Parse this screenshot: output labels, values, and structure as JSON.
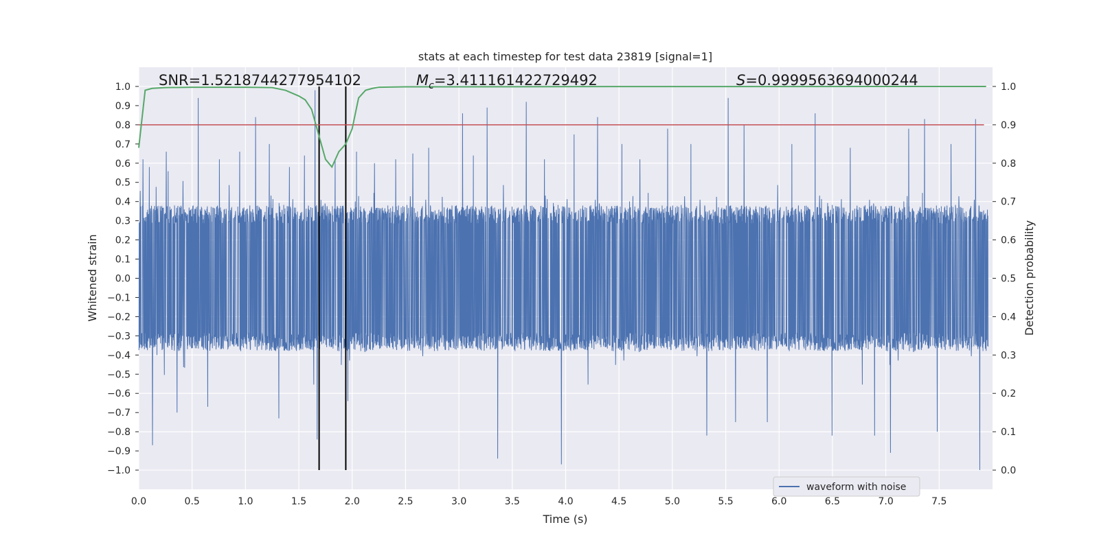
{
  "chart_data": {
    "type": "line",
    "title": "stats at each timestep for test data 23819 [signal=1]",
    "xlabel": "Time (s)",
    "ylabel_left": "Whitened strain",
    "ylabel_right": "Detection probability",
    "xlim": [
      0.0,
      8.0
    ],
    "ylim_left": [
      -1.1,
      1.1
    ],
    "ylim_right": [
      -0.05,
      1.05
    ],
    "x_ticks": [
      "0.0",
      "0.5",
      "1.0",
      "1.5",
      "2.0",
      "2.5",
      "3.0",
      "3.5",
      "4.0",
      "4.5",
      "5.0",
      "5.5",
      "6.0",
      "6.5",
      "7.0",
      "7.5"
    ],
    "y_ticks_left": [
      "1.0",
      "0.9",
      "0.8",
      "0.7",
      "0.6",
      "0.5",
      "0.4",
      "0.3",
      "0.2",
      "0.1",
      "0.0",
      "−0.1",
      "−0.2",
      "−0.3",
      "−0.4",
      "−0.5",
      "−0.6",
      "−0.7",
      "−0.8",
      "−0.9",
      "−1.0"
    ],
    "y_ticks_right": [
      "1.0",
      "0.9",
      "0.8",
      "0.7",
      "0.6",
      "0.5",
      "0.4",
      "0.3",
      "0.2",
      "0.1",
      "0.0"
    ],
    "grid": true,
    "annotations": {
      "snr": "SNR=1.5218744277954102",
      "mc_symbol": "M",
      "mc_sub": "c",
      "mc_value": "=3.411161422729492",
      "s_symbol": "S",
      "s_value": "=0.9999563694000244"
    },
    "legend": {
      "label": "waveform with noise",
      "location": "lower-right"
    },
    "vertical_markers_s": [
      1.69,
      1.94
    ],
    "threshold_probability": 0.9,
    "series": [
      {
        "name": "waveform with noise",
        "color": "#4c72b0",
        "sample_rate_hz": 512,
        "envelope_abs": 0.38,
        "peaks": [
          {
            "t": 0.04,
            "v": 0.62
          },
          {
            "t": 0.1,
            "v": 0.58
          },
          {
            "t": 0.13,
            "v": -0.87
          },
          {
            "t": 0.26,
            "v": 0.66
          },
          {
            "t": 0.36,
            "v": -0.7
          },
          {
            "t": 0.56,
            "v": 0.94
          },
          {
            "t": 0.65,
            "v": -0.67
          },
          {
            "t": 0.76,
            "v": 0.62
          },
          {
            "t": 0.95,
            "v": 0.66
          },
          {
            "t": 1.1,
            "v": 0.84
          },
          {
            "t": 1.23,
            "v": 0.7
          },
          {
            "t": 1.32,
            "v": -0.73
          },
          {
            "t": 1.42,
            "v": 0.58
          },
          {
            "t": 1.56,
            "v": 0.64
          },
          {
            "t": 1.66,
            "v": 0.98
          },
          {
            "t": 1.68,
            "v": -0.84
          },
          {
            "t": 1.85,
            "v": 0.62
          },
          {
            "t": 1.97,
            "v": -0.64
          },
          {
            "t": 2.05,
            "v": 0.66
          },
          {
            "t": 2.22,
            "v": 0.6
          },
          {
            "t": 2.42,
            "v": 0.62
          },
          {
            "t": 2.58,
            "v": 0.65
          },
          {
            "t": 2.73,
            "v": 0.68
          },
          {
            "t": 3.05,
            "v": 0.86
          },
          {
            "t": 3.15,
            "v": 0.64
          },
          {
            "t": 3.28,
            "v": 0.89
          },
          {
            "t": 3.38,
            "v": -0.94
          },
          {
            "t": 3.65,
            "v": 0.92
          },
          {
            "t": 3.82,
            "v": 0.62
          },
          {
            "t": 3.98,
            "v": -0.97
          },
          {
            "t": 4.1,
            "v": 0.75
          },
          {
            "t": 4.32,
            "v": 0.84
          },
          {
            "t": 4.55,
            "v": 0.7
          },
          {
            "t": 4.72,
            "v": 0.62
          },
          {
            "t": 4.98,
            "v": 0.78
          },
          {
            "t": 5.2,
            "v": 0.7
          },
          {
            "t": 5.35,
            "v": -0.82
          },
          {
            "t": 5.55,
            "v": 0.94
          },
          {
            "t": 5.62,
            "v": -0.75
          },
          {
            "t": 5.7,
            "v": 0.8
          },
          {
            "t": 5.92,
            "v": -0.75
          },
          {
            "t": 6.15,
            "v": 0.7
          },
          {
            "t": 6.37,
            "v": 0.86
          },
          {
            "t": 6.53,
            "v": -0.82
          },
          {
            "t": 6.7,
            "v": 0.68
          },
          {
            "t": 6.93,
            "v": -0.82
          },
          {
            "t": 7.08,
            "v": -0.91
          },
          {
            "t": 7.25,
            "v": 0.78
          },
          {
            "t": 7.4,
            "v": 0.83
          },
          {
            "t": 7.52,
            "v": -0.8
          },
          {
            "t": 7.65,
            "v": 0.7
          },
          {
            "t": 7.88,
            "v": 0.83
          },
          {
            "t": 7.92,
            "v": -1.0
          }
        ]
      },
      {
        "name": "detection probability",
        "color": "#55a868",
        "axis": "right",
        "x": [
          0.0,
          0.06,
          0.125,
          0.25,
          0.5,
          0.75,
          1.0,
          1.25,
          1.375,
          1.5,
          1.56,
          1.62,
          1.69,
          1.75,
          1.81,
          1.875,
          1.94,
          2.0,
          2.06,
          2.125,
          2.19,
          2.25,
          2.5,
          3.0,
          4.0,
          5.0,
          6.0,
          7.0,
          7.94
        ],
        "y": [
          0.84,
          0.99,
          0.995,
          0.997,
          0.998,
          0.998,
          0.998,
          0.997,
          0.99,
          0.975,
          0.965,
          0.94,
          0.87,
          0.81,
          0.79,
          0.83,
          0.85,
          0.89,
          0.97,
          0.99,
          0.995,
          0.998,
          0.999,
          0.999,
          0.9995,
          0.9998,
          0.9998,
          0.9999,
          0.9999
        ]
      }
    ]
  }
}
